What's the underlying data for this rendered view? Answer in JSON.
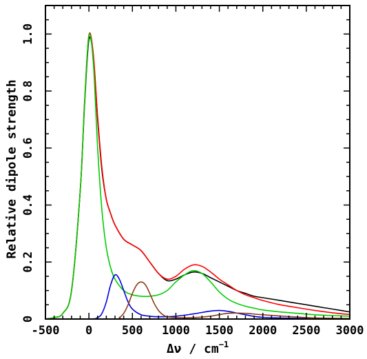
{
  "chart_data": {
    "type": "line",
    "xlabel": "Δν / cm",
    "xlabel_exponent": "−1",
    "ylabel": "Relative dipole strength",
    "xlim": [
      -500,
      3000
    ],
    "ylim": [
      0,
      1.1
    ],
    "x_ticks": [
      -500,
      0,
      500,
      1000,
      1500,
      2000,
      2500,
      3000
    ],
    "x_tick_labels": [
      "-500",
      "0",
      "500",
      "1000",
      "1500",
      "2000",
      "2500",
      "3000"
    ],
    "y_ticks": [
      0,
      0.2,
      0.4,
      0.6,
      0.8,
      1.0
    ],
    "y_tick_labels": [
      "0",
      "0.2",
      "0.4",
      "0.6",
      "0.8",
      "1.0"
    ],
    "grid": false,
    "legend": "none",
    "series": [
      {
        "color": "#000000",
        "x": [
          -500,
          -400,
          -300,
          -200,
          -100,
          -50,
          0,
          50,
          100,
          150,
          200,
          250,
          300,
          400,
          500,
          600,
          700,
          800,
          900,
          1000,
          1100,
          1200,
          1300,
          1400,
          1500,
          1600,
          1700,
          1800,
          1900,
          2000,
          2100,
          2200,
          2300,
          2400,
          2500,
          2600,
          2700,
          2800,
          2900,
          3000
        ],
        "y": [
          0,
          0.005,
          0.02,
          0.1,
          0.45,
          0.75,
          0.98,
          0.92,
          0.7,
          0.52,
          0.42,
          0.37,
          0.33,
          0.28,
          0.26,
          0.24,
          0.2,
          0.16,
          0.135,
          0.14,
          0.155,
          0.165,
          0.16,
          0.145,
          0.13,
          0.115,
          0.1,
          0.09,
          0.08,
          0.075,
          0.07,
          0.065,
          0.06,
          0.055,
          0.05,
          0.045,
          0.04,
          0.035,
          0.03,
          0.025
        ]
      },
      {
        "color": "#ff0000",
        "x": [
          -500,
          -400,
          -300,
          -200,
          -100,
          -50,
          0,
          50,
          100,
          150,
          200,
          250,
          300,
          400,
          500,
          600,
          700,
          800,
          900,
          1000,
          1100,
          1200,
          1300,
          1400,
          1500,
          1600,
          1700,
          1800,
          1900,
          2000,
          2200,
          2400,
          2600,
          2800,
          3000
        ],
        "y": [
          0,
          0.005,
          0.02,
          0.1,
          0.45,
          0.76,
          0.995,
          0.93,
          0.71,
          0.53,
          0.42,
          0.37,
          0.33,
          0.28,
          0.26,
          0.24,
          0.2,
          0.16,
          0.14,
          0.15,
          0.175,
          0.19,
          0.185,
          0.165,
          0.14,
          0.12,
          0.1,
          0.085,
          0.075,
          0.065,
          0.05,
          0.04,
          0.03,
          0.022,
          0.016
        ]
      },
      {
        "color": "#00cc00",
        "x": [
          -500,
          -400,
          -300,
          -200,
          -100,
          -50,
          0,
          50,
          100,
          150,
          200,
          250,
          300,
          400,
          500,
          600,
          700,
          800,
          900,
          1000,
          1100,
          1200,
          1300,
          1400,
          1500,
          1600,
          1700,
          1800,
          1900,
          2000,
          2200,
          2400,
          2600,
          2800,
          3000
        ],
        "y": [
          0,
          0.005,
          0.02,
          0.1,
          0.45,
          0.76,
          0.995,
          0.9,
          0.6,
          0.38,
          0.25,
          0.18,
          0.14,
          0.1,
          0.085,
          0.08,
          0.08,
          0.085,
          0.1,
          0.13,
          0.155,
          0.17,
          0.16,
          0.13,
          0.095,
          0.07,
          0.055,
          0.045,
          0.038,
          0.032,
          0.025,
          0.02,
          0.015,
          0.012,
          0.01
        ]
      },
      {
        "color": "#0000dd",
        "x": [
          -500,
          0,
          100,
          150,
          200,
          250,
          300,
          350,
          400,
          450,
          500,
          600,
          700,
          800,
          1000,
          1200,
          1400,
          1500,
          1600,
          1800,
          2000,
          2500,
          3000
        ],
        "y": [
          0,
          0,
          0.005,
          0.02,
          0.06,
          0.12,
          0.155,
          0.14,
          0.1,
          0.06,
          0.035,
          0.015,
          0.01,
          0.008,
          0.01,
          0.018,
          0.028,
          0.03,
          0.027,
          0.015,
          0.006,
          0.002,
          0.001
        ]
      },
      {
        "color": "#8b3a1a",
        "x": [
          -500,
          300,
          350,
          400,
          450,
          500,
          550,
          600,
          650,
          700,
          750,
          800,
          850,
          900,
          1000,
          1200,
          1400,
          1600,
          1800,
          2000,
          2500,
          3000
        ],
        "y": [
          0,
          0,
          0.005,
          0.02,
          0.05,
          0.09,
          0.12,
          0.13,
          0.12,
          0.09,
          0.055,
          0.03,
          0.015,
          0.008,
          0.005,
          0.005,
          0.01,
          0.02,
          0.02,
          0.015,
          0.005,
          0.002
        ]
      },
      {
        "color": "#cc00cc",
        "x": [
          -500,
          3000
        ],
        "y": [
          0,
          0
        ]
      }
    ]
  }
}
